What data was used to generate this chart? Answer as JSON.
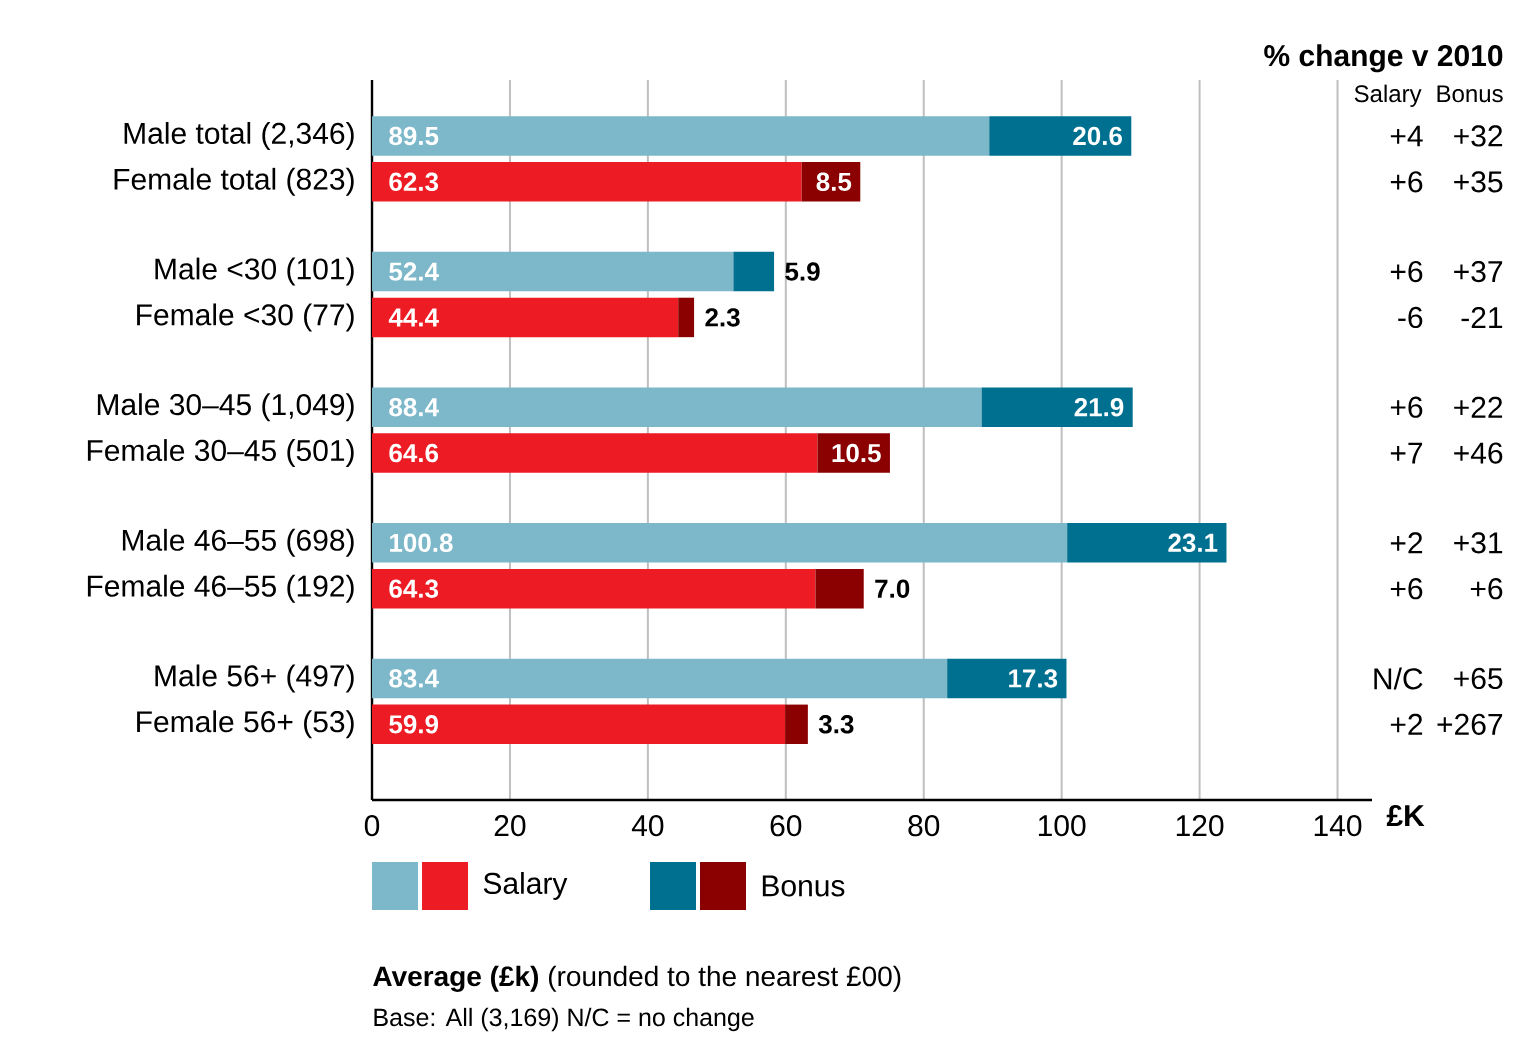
{
  "chart_data": {
    "type": "bar",
    "orientation": "horizontal",
    "stacked": true,
    "categories": [
      "Male total (2,346)",
      "Female total (823)",
      "Male <30 (101)",
      "Female <30 (77)",
      "Male 30–45 (1,049)",
      "Female 30–45 (501)",
      "Male 46–55 (698)",
      "Female 46–55 (192)",
      "Male 56+ (497)",
      "Female 56+ (53)"
    ],
    "series": [
      {
        "name": "Salary",
        "colors": [
          "#7db8ca",
          "#ed1c24",
          "#7db8ca",
          "#ed1c24",
          "#7db8ca",
          "#ed1c24",
          "#7db8ca",
          "#ed1c24",
          "#7db8ca",
          "#ed1c24"
        ],
        "values": [
          89.5,
          62.3,
          52.4,
          44.4,
          88.4,
          64.6,
          100.8,
          64.3,
          83.4,
          59.9
        ],
        "value_labels": [
          "89.5",
          "62.3",
          "52.4",
          "44.4",
          "88.4",
          "64.6",
          "100.8",
          "64.3",
          "83.4",
          "59.9"
        ]
      },
      {
        "name": "Bonus",
        "colors": [
          "#007090",
          "#8b0000",
          "#007090",
          "#8b0000",
          "#007090",
          "#8b0000",
          "#007090",
          "#8b0000",
          "#007090",
          "#8b0000"
        ],
        "values": [
          20.6,
          8.5,
          5.9,
          2.3,
          21.9,
          10.5,
          23.1,
          7.0,
          17.3,
          3.3
        ],
        "value_labels": [
          "20.6",
          "8.5",
          "5.9",
          "2.3",
          "21.9",
          "10.5",
          "23.1",
          "7.0",
          "17.3",
          "3.3"
        ]
      }
    ],
    "xlim": [
      0,
      145
    ],
    "xticks": [
      0,
      20,
      40,
      60,
      80,
      100,
      120,
      140
    ],
    "xlabel": "£K",
    "grid": "x",
    "legend": "bottom",
    "annotations": [
      "% change v 2010",
      "Salary",
      "Bonus",
      "+4",
      "+32",
      "+6",
      "+35",
      "+6",
      "+37",
      "-6",
      "-21",
      "+6",
      "+22",
      "+7",
      "+46",
      "+2",
      "+31",
      "+6",
      "+6",
      "N/C",
      "+65",
      "+2",
      "+267",
      "**Average (£k)** (rounded to the nearest £00)",
      "Base: All (3,169)   N/C = no change"
    ]
  }
}
